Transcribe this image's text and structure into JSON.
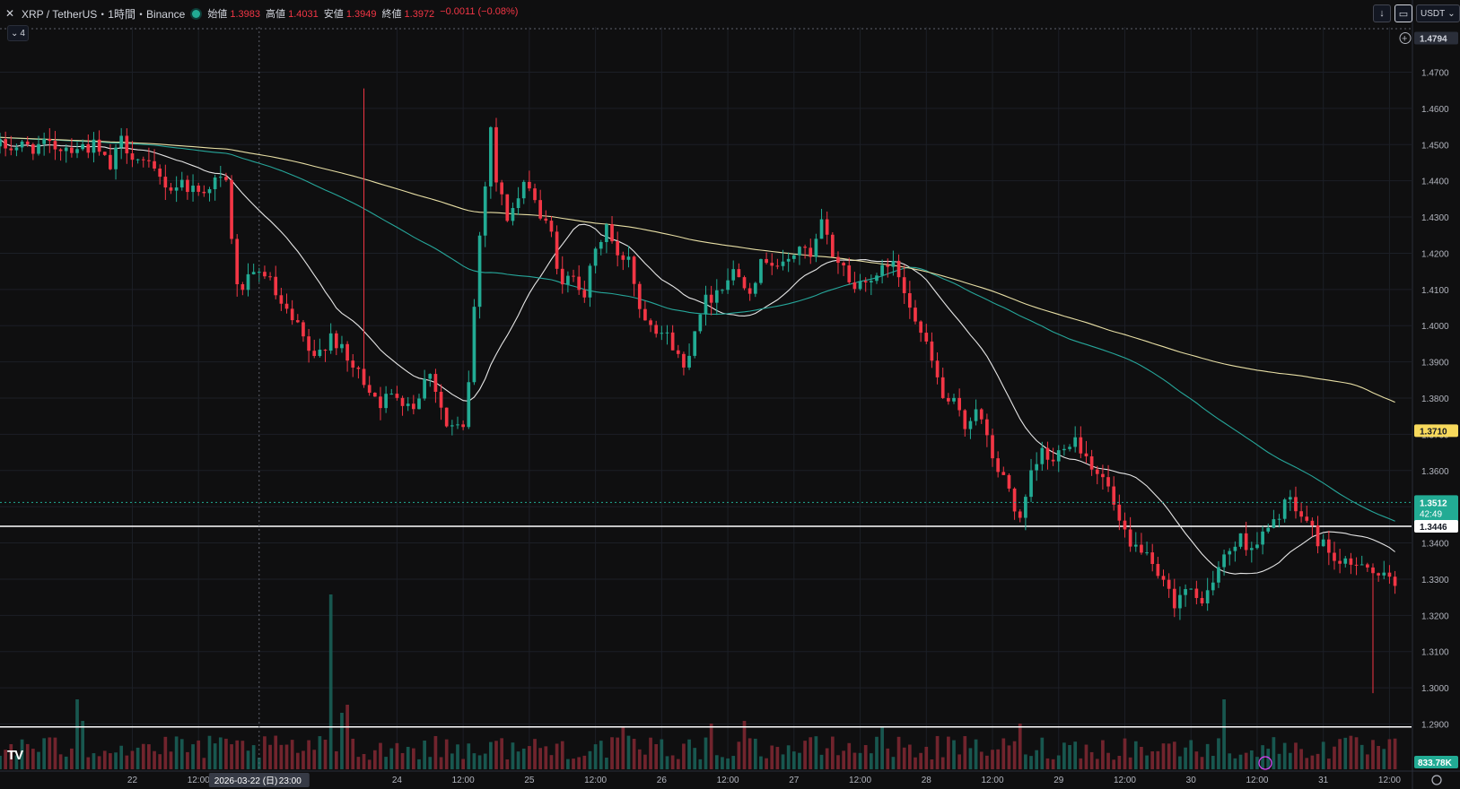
{
  "header": {
    "symbol_title": "XRP / TetherUS・1時間・Binance",
    "ohlc": [
      {
        "label": "始値",
        "value": "1.3983"
      },
      {
        "label": "高値",
        "value": "1.4031"
      },
      {
        "label": "安値",
        "value": "1.3949"
      },
      {
        "label": "終値",
        "value": "1.3972"
      },
      {
        "label": "",
        "value": "−0.0011 (−0.08%)"
      }
    ],
    "indicator_count": "4",
    "currency": "USDT"
  },
  "colors": {
    "up": "#22ab94",
    "down": "#f23645",
    "ma_fast": "#e6e6e6",
    "ma_mid": "#26a69a",
    "ma_slow": "#e8dfa5",
    "background": "#0f0f10",
    "grid": "#1c1f26",
    "hline": "#ffffff",
    "axis_text": "#b2b5be"
  },
  "chart_data": {
    "type": "candlestick",
    "symbol": "XRP/USDT",
    "interval": "1h",
    "ylim": [
      1.2775,
      1.4825
    ],
    "y_ticks": [
      "1.4700",
      "1.4600",
      "1.4500",
      "1.4400",
      "1.4300",
      "1.4200",
      "1.4100",
      "1.4000",
      "1.3900",
      "1.3800",
      "1.3700",
      "1.3600",
      "1.3500",
      "1.3400",
      "1.3300",
      "1.3200",
      "1.3100",
      "1.3000",
      "1.2900"
    ],
    "x_start_hour": -24,
    "x_end_hour": 232,
    "x_ticks": [
      {
        "label": "22",
        "hour": 0
      },
      {
        "label": "12:00",
        "hour": 12
      },
      {
        "label": "24",
        "hour": 48
      },
      {
        "label": "12:00",
        "hour": 60
      },
      {
        "label": "25",
        "hour": 72
      },
      {
        "label": "12:00",
        "hour": 84
      },
      {
        "label": "26",
        "hour": 96
      },
      {
        "label": "12:00",
        "hour": 108
      },
      {
        "label": "27",
        "hour": 120
      },
      {
        "label": "12:00",
        "hour": 132
      },
      {
        "label": "28",
        "hour": 144
      },
      {
        "label": "12:00",
        "hour": 156
      },
      {
        "label": "29",
        "hour": 168
      },
      {
        "label": "12:00",
        "hour": 180
      },
      {
        "label": "30",
        "hour": 192
      },
      {
        "label": "12:00",
        "hour": 204
      },
      {
        "label": "31",
        "hour": 216
      },
      {
        "label": "12:00",
        "hour": 228
      }
    ],
    "crosshair_date_label": "2026-03-22 (日)",
    "crosshair_time_label": "23:00",
    "crosshair_hour": 23,
    "price_labels": {
      "top": "1.4794",
      "ma_slow": "1.3710",
      "last_price": "1.3512",
      "countdown": "42:49",
      "ma_mid": "1.3469",
      "hline": "1.3446",
      "volume": "833.78K"
    },
    "horizontal_lines": [
      1.3446,
      1.2892
    ],
    "price_keypoints": [
      [
        -6,
        1.4495
      ],
      [
        -3,
        1.4435
      ],
      [
        -1,
        1.451
      ],
      [
        2,
        1.446
      ],
      [
        5,
        1.442
      ],
      [
        8,
        1.438
      ],
      [
        10,
        1.4395
      ],
      [
        13,
        1.437
      ],
      [
        16,
        1.44
      ],
      [
        18,
        1.4395
      ],
      [
        20,
        1.41
      ],
      [
        22,
        1.412
      ],
      [
        25,
        1.415
      ],
      [
        28,
        1.405
      ],
      [
        31,
        1.399
      ],
      [
        34,
        1.39
      ],
      [
        37,
        1.398
      ],
      [
        40,
        1.39
      ],
      [
        43,
        1.385
      ],
      [
        46,
        1.379
      ],
      [
        49,
        1.381
      ],
      [
        52,
        1.378
      ],
      [
        55,
        1.388
      ],
      [
        58,
        1.372
      ],
      [
        61,
        1.371
      ],
      [
        62,
        1.385
      ],
      [
        64,
        1.425
      ],
      [
        66,
        1.455
      ],
      [
        67,
        1.44
      ],
      [
        69,
        1.43
      ],
      [
        71,
        1.435
      ],
      [
        73,
        1.44
      ],
      [
        75,
        1.43
      ],
      [
        77,
        1.425
      ],
      [
        79,
        1.41
      ],
      [
        81,
        1.415
      ],
      [
        83,
        1.409
      ],
      [
        85,
        1.42
      ],
      [
        87,
        1.428
      ],
      [
        89,
        1.418
      ],
      [
        91,
        1.42
      ],
      [
        93,
        1.405
      ],
      [
        96,
        1.4
      ],
      [
        99,
        1.395
      ],
      [
        101,
        1.388
      ],
      [
        104,
        1.405
      ],
      [
        107,
        1.41
      ],
      [
        110,
        1.415
      ],
      [
        113,
        1.411
      ],
      [
        116,
        1.419
      ],
      [
        119,
        1.416
      ],
      [
        122,
        1.422
      ],
      [
        124,
        1.418
      ],
      [
        126,
        1.428
      ],
      [
        128,
        1.42
      ],
      [
        130,
        1.416
      ],
      [
        132,
        1.41
      ],
      [
        134,
        1.414
      ],
      [
        136,
        1.412
      ],
      [
        138,
        1.418
      ],
      [
        140,
        1.414
      ],
      [
        142,
        1.407
      ],
      [
        144,
        1.398
      ],
      [
        146,
        1.39
      ],
      [
        148,
        1.38
      ],
      [
        150,
        1.378
      ],
      [
        152,
        1.372
      ],
      [
        154,
        1.378
      ],
      [
        156,
        1.368
      ],
      [
        158,
        1.36
      ],
      [
        160,
        1.355
      ],
      [
        162,
        1.345
      ],
      [
        164,
        1.358
      ],
      [
        166,
        1.365
      ],
      [
        168,
        1.362
      ],
      [
        170,
        1.368
      ],
      [
        172,
        1.369
      ],
      [
        174,
        1.364
      ],
      [
        176,
        1.36
      ],
      [
        178,
        1.355
      ],
      [
        180,
        1.345
      ],
      [
        182,
        1.338
      ],
      [
        184,
        1.339
      ],
      [
        186,
        1.332
      ],
      [
        188,
        1.328
      ],
      [
        190,
        1.324
      ],
      [
        192,
        1.327
      ],
      [
        194,
        1.324
      ],
      [
        196,
        1.326
      ],
      [
        198,
        1.333
      ],
      [
        200,
        1.338
      ],
      [
        202,
        1.341
      ],
      [
        204,
        1.339
      ],
      [
        206,
        1.342
      ],
      [
        208,
        1.345
      ],
      [
        210,
        1.352
      ],
      [
        212,
        1.349
      ],
      [
        214,
        1.346
      ],
      [
        216,
        1.341
      ],
      [
        218,
        1.338
      ],
      [
        220,
        1.334
      ],
      [
        222,
        1.333
      ],
      [
        224,
        1.336
      ],
      [
        226,
        1.332
      ],
      [
        228,
        1.33
      ],
      [
        230,
        1.328
      ],
      [
        232,
        1.325
      ],
      [
        234,
        1.322
      ],
      [
        236,
        1.322
      ],
      [
        238,
        1.326
      ],
      [
        240,
        1.33
      ],
      [
        242,
        1.345
      ],
      [
        244,
        1.35
      ],
      [
        246,
        1.353
      ],
      [
        248,
        1.354
      ],
      [
        250,
        1.35
      ],
      [
        252,
        1.356
      ],
      [
        253,
        1.3512
      ]
    ],
    "volume_spikes": {
      "15": 2.6,
      "16": 1.8,
      "61": 6.5,
      "63": 2.1,
      "64": 2.4,
      "114": 1.6,
      "130": 1.7,
      "136": 1.8,
      "161": 1.6,
      "186": 1.7,
      "223": 2.6
    }
  }
}
